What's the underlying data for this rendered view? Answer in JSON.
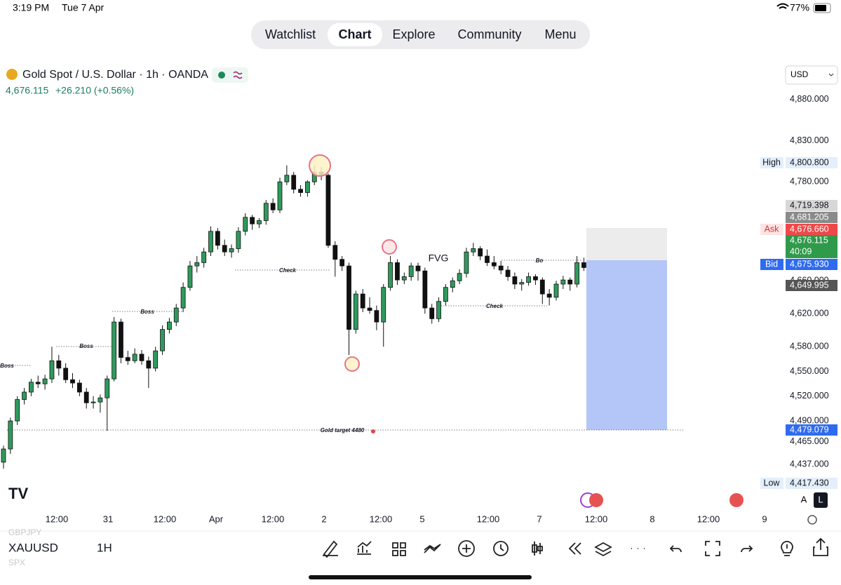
{
  "status_bar": {
    "time": "3:19 PM",
    "date": "Tue 7 Apr",
    "battery": "77%"
  },
  "tabs": [
    "Watchlist",
    "Chart",
    "Explore",
    "Community",
    "Menu"
  ],
  "active_tab": 1,
  "symbol": {
    "title": "Gold Spot / U.S. Dollar · 1h · OANDA",
    "last": "4,676.115",
    "change": "+26.210 (+0.56%)"
  },
  "currency": "USD",
  "chart_data": {
    "type": "candlestick",
    "up_color": "#2f9a5c",
    "down_color": "#111111",
    "ylim": [
      4388,
      4924
    ],
    "yticks": [
      {
        "value": 4880,
        "label": "4,880.000"
      },
      {
        "value": 4830,
        "label": "4,830.000"
      },
      {
        "value": 4780,
        "label": "4,780.000"
      },
      {
        "value": 4660,
        "label": "4,660.000"
      },
      {
        "value": 4620,
        "label": "4,620.000"
      },
      {
        "value": 4580,
        "label": "4,580.000"
      },
      {
        "value": 4550,
        "label": "4,550.000"
      },
      {
        "value": 4520,
        "label": "4,520.000"
      },
      {
        "value": 4490,
        "label": "4,490.000"
      },
      {
        "value": 4465,
        "label": "4,465.000"
      },
      {
        "value": 4437,
        "label": "4,437.000"
      }
    ],
    "x_labels": [
      "12:00",
      "31",
      "12:00",
      "Apr",
      "12:00",
      "2",
      "12:00",
      "5",
      "12:00",
      "7",
      "12:00",
      "8",
      "12:00",
      "9"
    ],
    "candles": [
      [
        4440,
        4460,
        4432,
        4456
      ],
      [
        4456,
        4494,
        4450,
        4490
      ],
      [
        4490,
        4520,
        4485,
        4516
      ],
      [
        4516,
        4530,
        4510,
        4525
      ],
      [
        4525,
        4541,
        4520,
        4537
      ],
      [
        4537,
        4545,
        4530,
        4535
      ],
      [
        4535,
        4546,
        4528,
        4541
      ],
      [
        4541,
        4580,
        4536,
        4563
      ],
      [
        4563,
        4570,
        4545,
        4554
      ],
      [
        4554,
        4560,
        4536,
        4540
      ],
      [
        4540,
        4548,
        4530,
        4536
      ],
      [
        4536,
        4540,
        4520,
        4525
      ],
      [
        4525,
        4530,
        4505,
        4512
      ],
      [
        4512,
        4520,
        4505,
        4513
      ],
      [
        4513,
        4522,
        4500,
        4518
      ],
      [
        4518,
        4545,
        4478,
        4541
      ],
      [
        4541,
        4616,
        4538,
        4610
      ],
      [
        4610,
        4614,
        4560,
        4567
      ],
      [
        4567,
        4575,
        4558,
        4563
      ],
      [
        4563,
        4578,
        4560,
        4571
      ],
      [
        4571,
        4576,
        4558,
        4563
      ],
      [
        4563,
        4568,
        4530,
        4554
      ],
      [
        4554,
        4580,
        4550,
        4575
      ],
      [
        4575,
        4606,
        4570,
        4601
      ],
      [
        4601,
        4615,
        4596,
        4610
      ],
      [
        4610,
        4632,
        4605,
        4627
      ],
      [
        4627,
        4658,
        4622,
        4652
      ],
      [
        4652,
        4684,
        4648,
        4678
      ],
      [
        4678,
        4690,
        4670,
        4682
      ],
      [
        4682,
        4700,
        4676,
        4695
      ],
      [
        4695,
        4726,
        4690,
        4720
      ],
      [
        4720,
        4724,
        4698,
        4703
      ],
      [
        4703,
        4710,
        4690,
        4695
      ],
      [
        4695,
        4704,
        4688,
        4699
      ],
      [
        4699,
        4725,
        4694,
        4720
      ],
      [
        4720,
        4742,
        4715,
        4737
      ],
      [
        4737,
        4740,
        4722,
        4729
      ],
      [
        4729,
        4736,
        4724,
        4733
      ],
      [
        4733,
        4758,
        4728,
        4754
      ],
      [
        4754,
        4760,
        4742,
        4746
      ],
      [
        4746,
        4785,
        4742,
        4780
      ],
      [
        4780,
        4800,
        4776,
        4788
      ],
      [
        4788,
        4792,
        4766,
        4771
      ],
      [
        4771,
        4776,
        4762,
        4767
      ],
      [
        4767,
        4782,
        4762,
        4780
      ],
      [
        4780,
        4800,
        4776,
        4792
      ],
      [
        4792,
        4798,
        4782,
        4788
      ],
      [
        4788,
        4790,
        4700,
        4703
      ],
      [
        4703,
        4708,
        4665,
        4686
      ],
      [
        4686,
        4690,
        4672,
        4678
      ],
      [
        4678,
        4682,
        4570,
        4601
      ],
      [
        4601,
        4648,
        4596,
        4644
      ],
      [
        4644,
        4650,
        4622,
        4627
      ],
      [
        4627,
        4640,
        4620,
        4624
      ],
      [
        4624,
        4630,
        4600,
        4610
      ],
      [
        4610,
        4656,
        4580,
        4652
      ],
      [
        4652,
        4690,
        4648,
        4682
      ],
      [
        4682,
        4686,
        4655,
        4661
      ],
      [
        4661,
        4670,
        4656,
        4665
      ],
      [
        4665,
        4682,
        4660,
        4678
      ],
      [
        4678,
        4682,
        4660,
        4672
      ],
      [
        4672,
        4676,
        4620,
        4627
      ],
      [
        4627,
        4632,
        4608,
        4614
      ],
      [
        4614,
        4640,
        4610,
        4635
      ],
      [
        4635,
        4656,
        4630,
        4652
      ],
      [
        4652,
        4664,
        4646,
        4660
      ],
      [
        4660,
        4674,
        4656,
        4669
      ],
      [
        4669,
        4700,
        4664,
        4695
      ],
      [
        4695,
        4706,
        4690,
        4699
      ],
      [
        4699,
        4702,
        4685,
        4690
      ],
      [
        4690,
        4698,
        4678,
        4682
      ],
      [
        4682,
        4690,
        4674,
        4678
      ],
      [
        4678,
        4684,
        4668,
        4673
      ],
      [
        4673,
        4678,
        4660,
        4665
      ],
      [
        4665,
        4670,
        4650,
        4656
      ],
      [
        4656,
        4662,
        4648,
        4658
      ],
      [
        4658,
        4670,
        4654,
        4665
      ],
      [
        4665,
        4668,
        4655,
        4661
      ],
      [
        4661,
        4664,
        4632,
        4644
      ],
      [
        4644,
        4650,
        4630,
        4640
      ],
      [
        4640,
        4660,
        4636,
        4656
      ],
      [
        4656,
        4666,
        4650,
        4661
      ],
      [
        4661,
        4664,
        4648,
        4656
      ],
      [
        4656,
        4690,
        4652,
        4682
      ],
      [
        4682,
        4688,
        4672,
        4676
      ]
    ],
    "annotations": [
      "Boss",
      "Boss",
      "Boss",
      "Check",
      "Check",
      "Bo",
      "FVG",
      "Gold target 4480"
    ],
    "price_tags": [
      {
        "name": "High",
        "label": "4,800.800",
        "color": "#e3effa"
      },
      {
        "label": "4,719.398",
        "color": "#d7d7d7"
      },
      {
        "label": "4,681.205",
        "color": "#8a8a8a"
      },
      {
        "name": "Ask",
        "label": "4,676.660",
        "color": "#f04848"
      },
      {
        "label": "4,676.115",
        "timer": "40:09",
        "color": "#2f9a4a"
      },
      {
        "name": "Bid",
        "label": "4,675.930",
        "color": "#2f6bf0"
      },
      {
        "label": "4,649.995",
        "color": "#555555"
      },
      {
        "label": "4,479.079",
        "color": "#2f6bf0"
      },
      {
        "name": "Low",
        "label": "4,417.430",
        "color": "#e3effa"
      }
    ]
  },
  "toolbar": {
    "symbol": "XAUUSD",
    "interval": "1H",
    "prev": "GBPJPY",
    "next": "SPX"
  },
  "scale_modes": [
    "A",
    "L"
  ]
}
